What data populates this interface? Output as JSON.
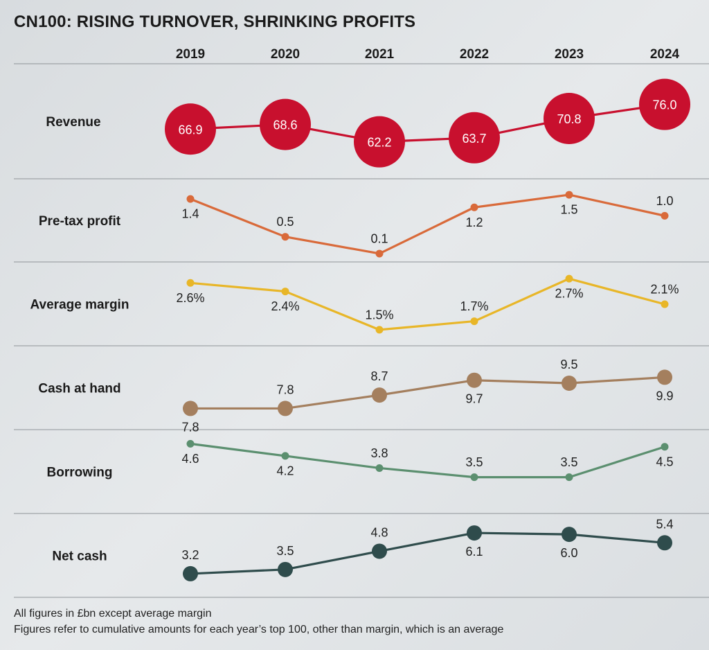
{
  "title": "CN100: RISING TURNOVER, SHRINKING PROFITS",
  "footnotes": [
    "All figures in £bn except average margin",
    "Figures refer to cumulative amounts for each year’s top 100, other than margin, which is an average"
  ],
  "chart_data": {
    "type": "line",
    "title": "CN100: RISING TURNOVER, SHRINKING PROFITS",
    "categories": [
      "2019",
      "2020",
      "2021",
      "2022",
      "2023",
      "2024"
    ],
    "grid": "horizontal row dividers",
    "series": [
      {
        "name": "Revenue",
        "values": [
          66.9,
          68.6,
          62.2,
          63.7,
          70.8,
          76.0
        ],
        "labels": [
          "66.9",
          "68.6",
          "62.2",
          "63.7",
          "70.8",
          "76.0"
        ],
        "ylim": [
          57,
          80
        ],
        "color": "#c8102e",
        "style": "bubble"
      },
      {
        "name": "Pre-tax profit",
        "values": [
          1.4,
          0.5,
          0.1,
          1.2,
          1.5,
          1.0
        ],
        "labels": [
          "1.4",
          "0.5",
          "0.1",
          "1.2",
          "1.5",
          "1.0"
        ],
        "ylim": [
          0,
          1.6
        ],
        "color": "#d96a3a",
        "style": "small"
      },
      {
        "name": "Average margin",
        "values": [
          2.6,
          2.4,
          1.5,
          1.7,
          2.7,
          2.1
        ],
        "labels": [
          "2.6%",
          "2.4%",
          "1.5%",
          "1.7%",
          "2.7%",
          "2.1%"
        ],
        "ylim": [
          1.4,
          2.8
        ],
        "color": "#e8b628",
        "style": "small"
      },
      {
        "name": "Cash at hand",
        "values": [
          7.8,
          7.8,
          8.7,
          9.7,
          9.5,
          9.9
        ],
        "labels": [
          "7.8",
          "7.8",
          "8.7",
          "9.7",
          "9.5",
          "9.9"
        ],
        "ylim": [
          7.4,
          10.2
        ],
        "color": "#a47f5e",
        "style": "medium"
      },
      {
        "name": "Borrowing",
        "values": [
          4.6,
          4.2,
          3.8,
          3.5,
          3.5,
          4.5
        ],
        "labels": [
          "4.6",
          "4.2",
          "3.8",
          "3.5",
          "3.5",
          "4.5"
        ],
        "ylim": [
          3.4,
          4.7
        ],
        "color": "#5b8f6f",
        "style": "small"
      },
      {
        "name": "Net cash",
        "values": [
          3.2,
          3.5,
          4.8,
          6.1,
          6.0,
          5.4
        ],
        "labels": [
          "3.2",
          "3.5",
          "4.8",
          "6.1",
          "6.0",
          "5.4"
        ],
        "ylim": [
          2.9,
          6.4
        ],
        "color": "#2f4c4c",
        "style": "medium"
      }
    ]
  }
}
